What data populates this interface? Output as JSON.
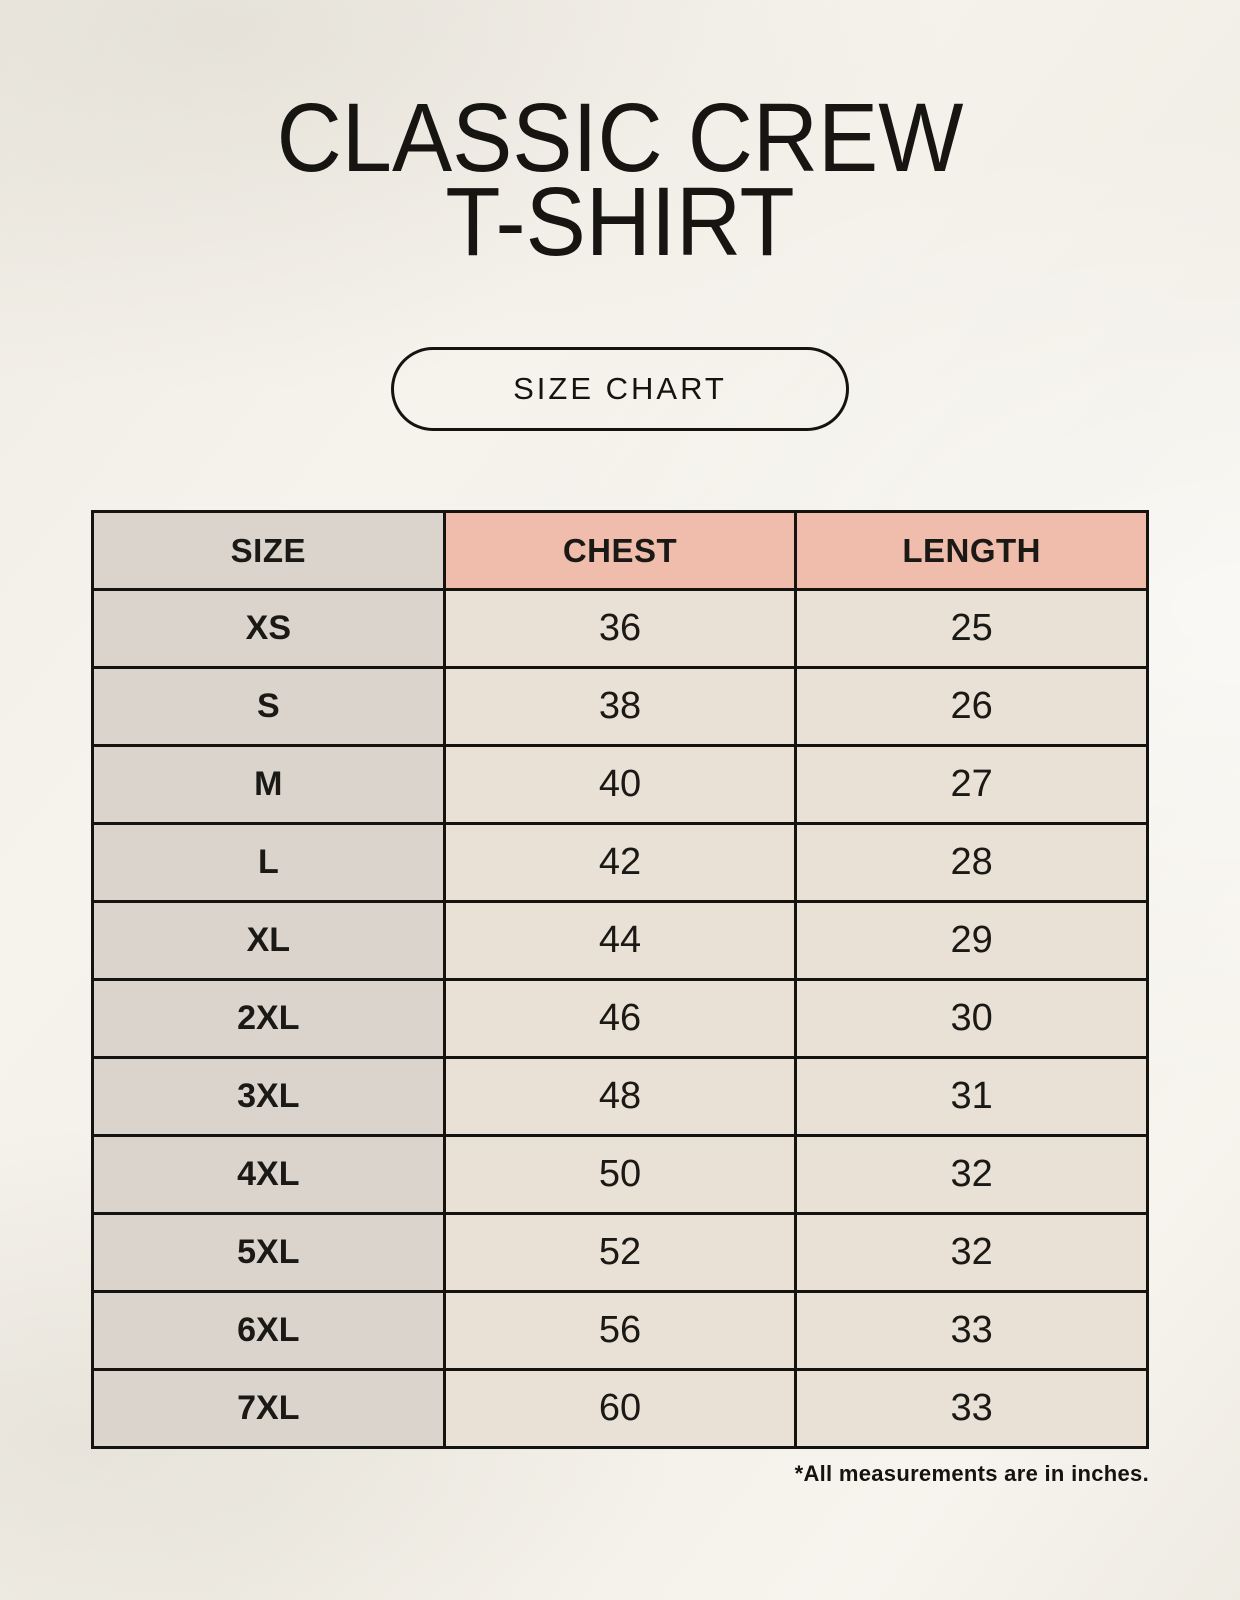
{
  "header": {
    "title_line1": "CLASSIC CREW",
    "title_line2": "T-SHIRT",
    "badge_label": "SIZE CHART"
  },
  "chart_data": {
    "type": "table",
    "title": "CLASSIC CREW T-SHIRT SIZE CHART",
    "units": "inches",
    "columns": [
      "SIZE",
      "CHEST",
      "LENGTH"
    ],
    "rows": [
      {
        "size": "XS",
        "chest": 36,
        "length": 25
      },
      {
        "size": "S",
        "chest": 38,
        "length": 26
      },
      {
        "size": "M",
        "chest": 40,
        "length": 27
      },
      {
        "size": "L",
        "chest": 42,
        "length": 28
      },
      {
        "size": "XL",
        "chest": 44,
        "length": 29
      },
      {
        "size": "2XL",
        "chest": 46,
        "length": 30
      },
      {
        "size": "3XL",
        "chest": 48,
        "length": 31
      },
      {
        "size": "4XL",
        "chest": 50,
        "length": 32
      },
      {
        "size": "5XL",
        "chest": 52,
        "length": 32
      },
      {
        "size": "6XL",
        "chest": 56,
        "length": 33
      },
      {
        "size": "7XL",
        "chest": 60,
        "length": 33
      }
    ]
  },
  "footnote": "*All measurements are in inches.",
  "colors": {
    "background": "#f3f0e9",
    "text": "#15130f",
    "header_accent": "#f0bcab",
    "size_column": "#dbd4cd",
    "data_cell": "#e9e1d5",
    "border": "#15130f"
  }
}
